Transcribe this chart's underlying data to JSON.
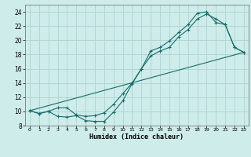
{
  "title": "",
  "xlabel": "Humidex (Indice chaleur)",
  "background_color": "#ceecea",
  "grid_color": "#aed4d0",
  "line_color": "#1a6b6b",
  "xlim": [
    -0.5,
    23.5
  ],
  "ylim": [
    8,
    25
  ],
  "yticks": [
    8,
    10,
    12,
    14,
    16,
    18,
    20,
    22,
    24
  ],
  "xtick_labels": [
    "0",
    "1",
    "2",
    "3",
    "4",
    "5",
    "6",
    "7",
    "8",
    "9",
    "10",
    "11",
    "12",
    "13",
    "14",
    "15",
    "16",
    "17",
    "18",
    "19",
    "20",
    "21",
    "22",
    "23"
  ],
  "line1_x": [
    0,
    1,
    2,
    3,
    4,
    5,
    6,
    7,
    8,
    9,
    10,
    11,
    12,
    13,
    14,
    15,
    16,
    17,
    18,
    19,
    20,
    21,
    22,
    23
  ],
  "line1_y": [
    10.1,
    9.7,
    10.0,
    9.3,
    9.2,
    9.4,
    8.7,
    8.6,
    8.6,
    9.9,
    11.5,
    13.9,
    16.0,
    18.5,
    19.0,
    19.9,
    21.1,
    22.2,
    23.8,
    24.0,
    22.5,
    22.2,
    19.0,
    18.3
  ],
  "line2_x": [
    0,
    1,
    2,
    3,
    4,
    5,
    6,
    7,
    8,
    9,
    10,
    11,
    12,
    13,
    14,
    15,
    16,
    17,
    18,
    19,
    20,
    21,
    22,
    23
  ],
  "line2_y": [
    10.1,
    9.7,
    10.0,
    10.5,
    10.5,
    9.5,
    9.3,
    9.4,
    9.8,
    11.0,
    12.5,
    14.0,
    16.0,
    17.8,
    18.5,
    19.0,
    20.5,
    21.5,
    23.0,
    23.7,
    23.0,
    22.2,
    19.0,
    18.3
  ],
  "line3_x": [
    0,
    23
  ],
  "line3_y": [
    10.1,
    18.3
  ]
}
